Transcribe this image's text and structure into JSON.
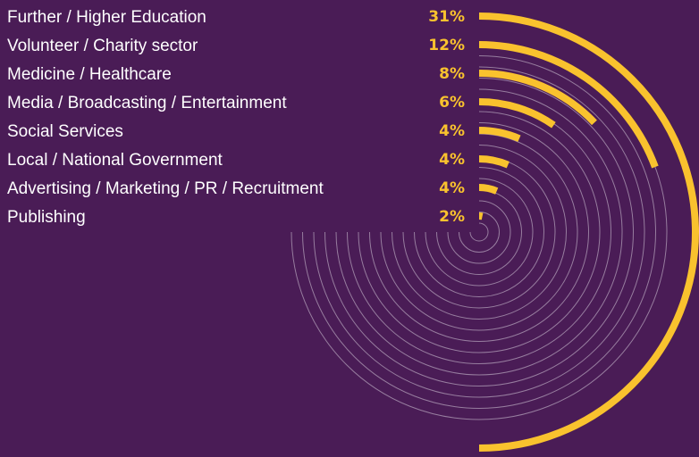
{
  "chart_data": {
    "type": "radial-bar",
    "title": "",
    "categories": [
      "Further / Higher Education",
      "Volunteer / Charity sector",
      "Medicine / Healthcare",
      "Media / Broadcasting / Entertainment",
      "Social Services",
      "Local / National Government",
      "Advertising / Marketing / PR / Recruitment",
      "Publishing"
    ],
    "values": [
      31,
      12,
      8,
      6,
      4,
      4,
      4,
      2
    ],
    "value_labels": [
      "31%",
      "12%",
      "8%",
      "6%",
      "4%",
      "4%",
      "4%",
      "2%"
    ],
    "unit": "%",
    "legend": "none",
    "grid": false
  },
  "colors": {
    "background": "#4a1c56",
    "bar": "#f9c22e",
    "value_text": "#f9c22e",
    "label_text": "#ffffff",
    "rings": "#a58eab"
  }
}
